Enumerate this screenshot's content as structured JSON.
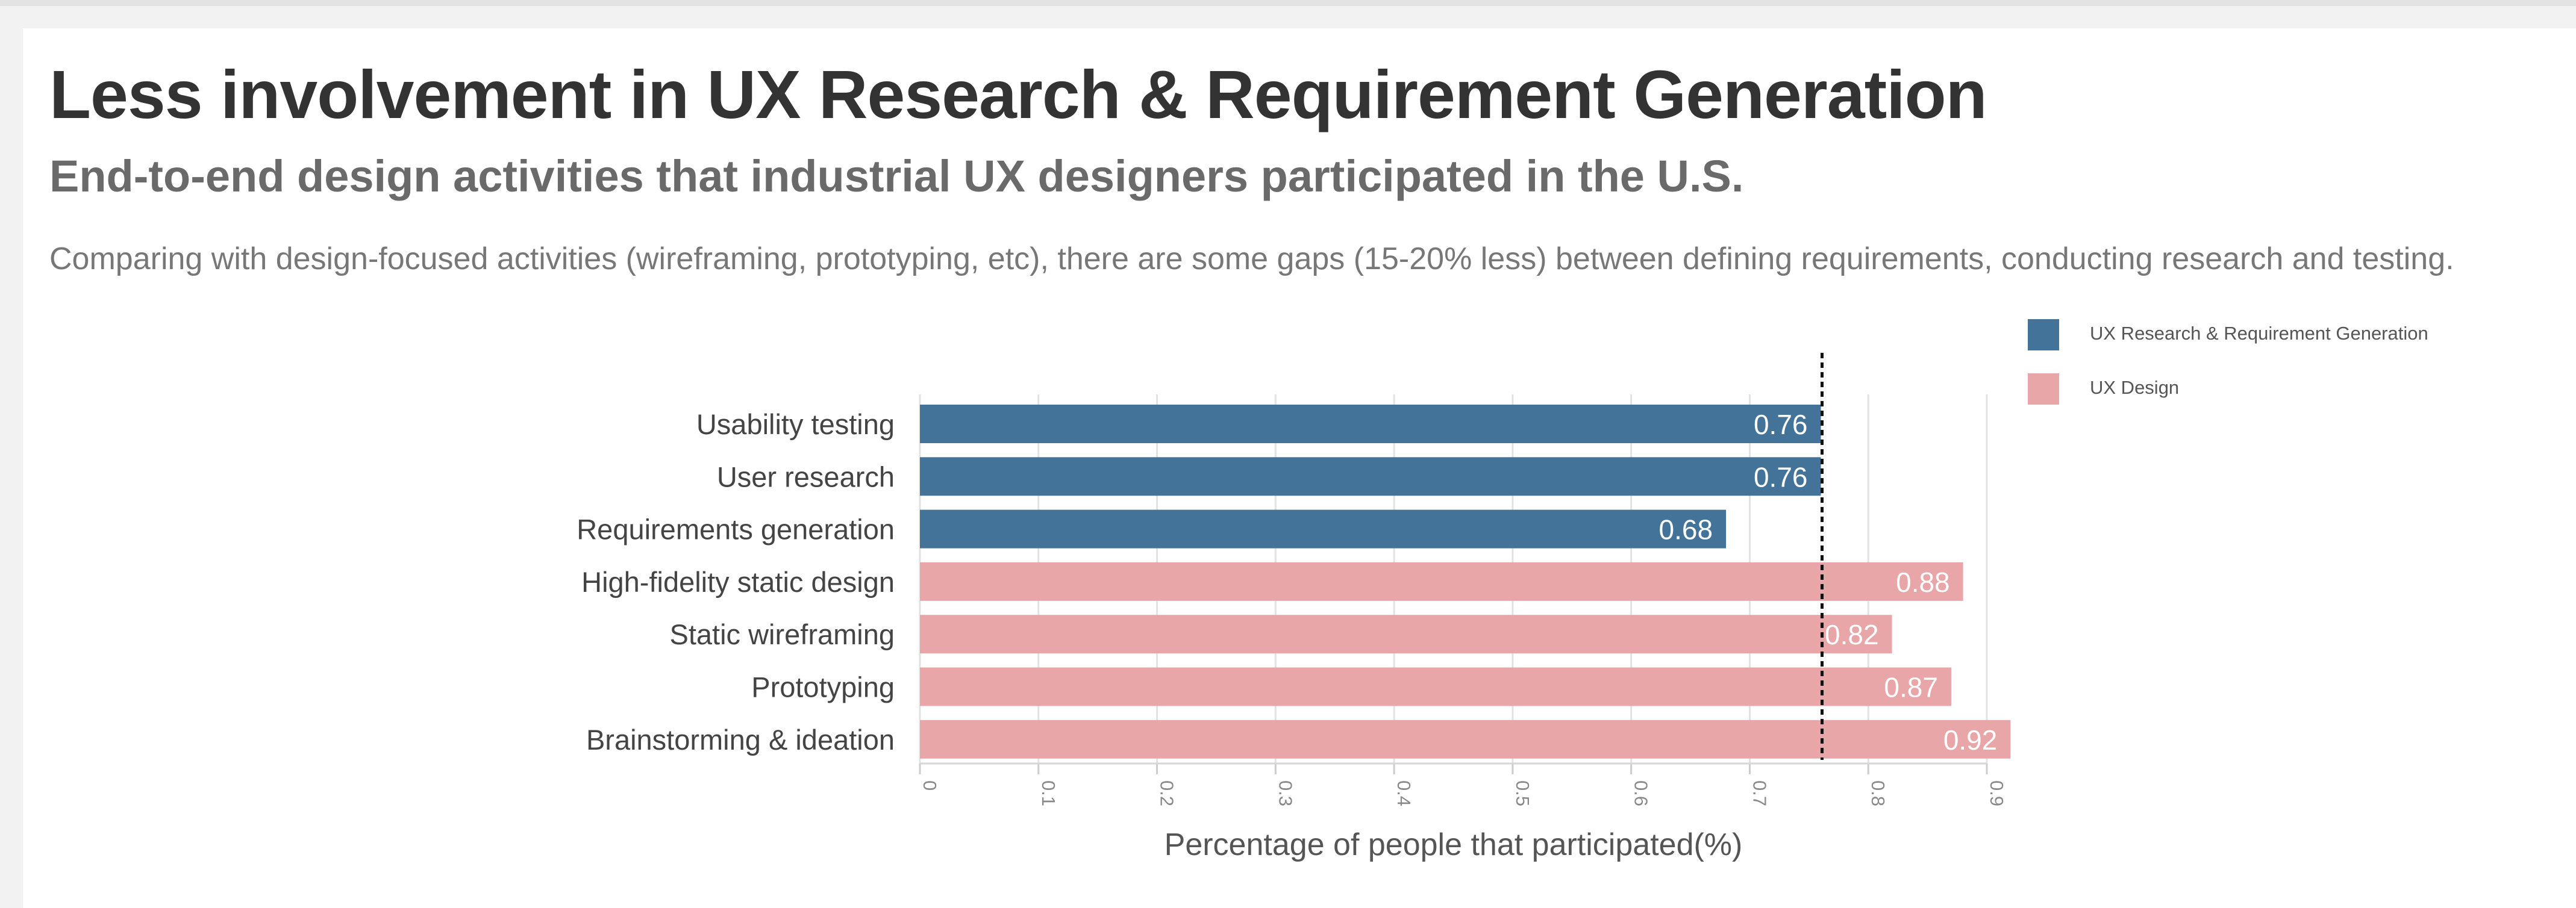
{
  "header": {
    "title": "Less involvement in UX Research & Requirement Generation",
    "subtitle": "End-to-end design activities that industrial UX designers participated in the U.S.",
    "description": "Comparing with design-focused activities (wireframing, prototyping, etc), there are some gaps (15-20% less) between defining requirements, conducting research and testing."
  },
  "legend": [
    {
      "label": "UX Research & Requirement Generation",
      "color": "#44739a"
    },
    {
      "label": "UX Design",
      "color": "#e8a6a9"
    }
  ],
  "chart_data": {
    "type": "bar",
    "orientation": "horizontal",
    "categories": [
      "Usability testing",
      "User research",
      "Requirements generation",
      "High-fidelity static design",
      "Static wireframing",
      "Prototyping",
      "Brainstorming & ideation"
    ],
    "values": [
      0.76,
      0.76,
      0.68,
      0.88,
      0.82,
      0.87,
      0.92
    ],
    "value_labels": [
      "0.76",
      "0.76",
      "0.68",
      "0.88",
      "0.82",
      "0.87",
      "0.92"
    ],
    "groups": [
      "UX Research & Requirement Generation",
      "UX Research & Requirement Generation",
      "UX Research & Requirement Generation",
      "UX Design",
      "UX Design",
      "UX Design",
      "UX Design"
    ],
    "xlabel": "Percentage of people that participated(%)",
    "ylabel": "",
    "xlim": [
      0,
      0.9
    ],
    "ticks": [
      0,
      0.1,
      0.2,
      0.3,
      0.4,
      0.5,
      0.6,
      0.7,
      0.8,
      0.9
    ],
    "tick_labels": [
      "0",
      "0.1",
      "0.2",
      "0.3",
      "0.4",
      "0.5",
      "0.6",
      "0.7",
      "0.8",
      "0.9"
    ],
    "reference_line": 0.76,
    "grid": true,
    "legend_position": "top-right"
  }
}
